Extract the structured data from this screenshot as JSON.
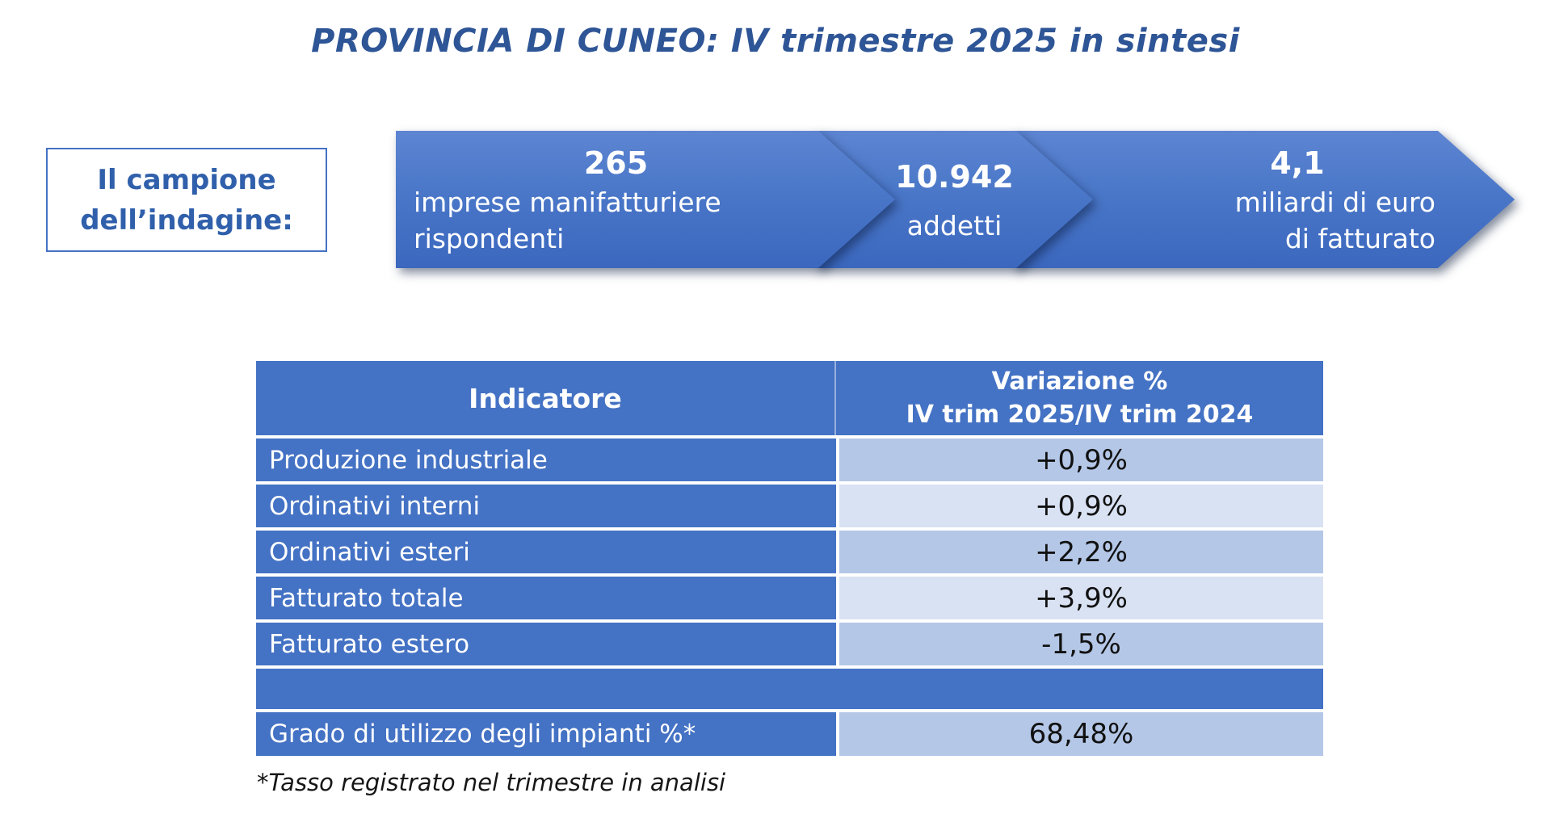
{
  "page": {
    "title": "PROVINCIA DI CUNEO: IV trimestre 2025 in sintesi"
  },
  "sample_box": {
    "line1": "Il campione",
    "line2": "dell’indagine:"
  },
  "arrows": [
    {
      "number": "265",
      "label": "imprese manifatturiere\nrispondenti"
    },
    {
      "number": "10.942",
      "label": "addetti"
    },
    {
      "number": "4,1",
      "label": "miliardi di euro\ndi fatturato"
    }
  ],
  "table": {
    "header": {
      "col1": "Indicatore",
      "col2_line1": "Variazione %",
      "col2_line2": "IV trim 2025/IV trim 2024"
    },
    "rows": [
      {
        "label": "Produzione industriale",
        "value": "+0,9%"
      },
      {
        "label": "Ordinativi interni",
        "value": "+0,9%"
      },
      {
        "label": "Ordinativi esteri",
        "value": "+2,2%"
      },
      {
        "label": "Fatturato totale",
        "value": "+3,9%"
      },
      {
        "label": "Fatturato estero",
        "value": "-1,5%"
      }
    ],
    "extra_row": {
      "label": "Grado di utilizzo degli impianti %*",
      "value": "68,48%"
    }
  },
  "footnote": "*Tasso registrato nel trimestre in analisi",
  "colors": {
    "primary_blue": "#4472C4",
    "row_light": "#B4C7E7",
    "row_lighter": "#D9E2F3",
    "title_blue": "#2E5596",
    "arrow_gradient_top": "#5D85D2",
    "arrow_gradient_bottom": "#3B67BE"
  }
}
